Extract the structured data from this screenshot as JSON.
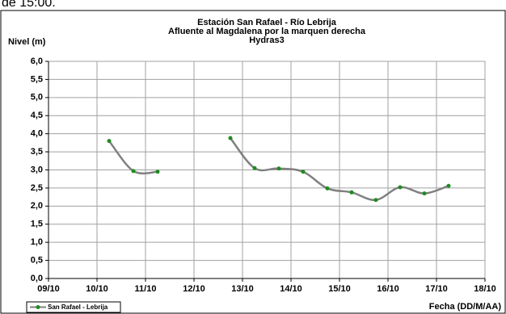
{
  "caption": "de 15:00.",
  "chart_data": {
    "type": "line",
    "title": "Estación San Rafael - Río Lebrija",
    "subtitle": [
      "Afluente al Magdalena por la marquen derecha",
      "Hydras3"
    ],
    "y_label": "Nivel (m)",
    "x_label": "Fecha (DD/M/AA)",
    "x": [
      10.25,
      10.75,
      11.25,
      11.75,
      12.25,
      12.75,
      13.25,
      13.75,
      14.25,
      14.75,
      15.25,
      15.75,
      16.25,
      16.75,
      17.25
    ],
    "series": [
      {
        "name": "San Rafael - Lebrija",
        "color": "#808080",
        "marker_color": "#1e8c1e",
        "values": [
          3.8,
          2.97,
          2.95,
          null,
          null,
          3.88,
          3.05,
          3.04,
          2.95,
          2.49,
          2.38,
          2.17,
          2.52,
          2.35,
          2.56
        ]
      }
    ],
    "xlim": [
      9,
      18
    ],
    "xticks": [
      {
        "value": 9,
        "label": "09/10"
      },
      {
        "value": 10,
        "label": "10/10"
      },
      {
        "value": 11,
        "label": "11/10"
      },
      {
        "value": 12,
        "label": "12/10"
      },
      {
        "value": 13,
        "label": "13/10"
      },
      {
        "value": 14,
        "label": "14/10"
      },
      {
        "value": 15,
        "label": "15/10"
      },
      {
        "value": 16,
        "label": "16/10"
      },
      {
        "value": 17,
        "label": "17/10"
      },
      {
        "value": 18,
        "label": "18/10"
      }
    ],
    "ylim": [
      0,
      6
    ],
    "yticks": [
      {
        "value": 0,
        "label": "0,0"
      },
      {
        "value": 0.5,
        "label": "0,5"
      },
      {
        "value": 1,
        "label": "1,0"
      },
      {
        "value": 1.5,
        "label": "1,5"
      },
      {
        "value": 2,
        "label": "2,0"
      },
      {
        "value": 2.5,
        "label": "2,5"
      },
      {
        "value": 3,
        "label": "3,0"
      },
      {
        "value": 3.5,
        "label": "3,5"
      },
      {
        "value": 4,
        "label": "4,0"
      },
      {
        "value": 4.5,
        "label": "4,5"
      },
      {
        "value": 5,
        "label": "5,0"
      },
      {
        "value": 5.5,
        "label": "5,5"
      },
      {
        "value": 6,
        "label": "6,0"
      }
    ],
    "grid": true,
    "legend": "bottom-left"
  }
}
